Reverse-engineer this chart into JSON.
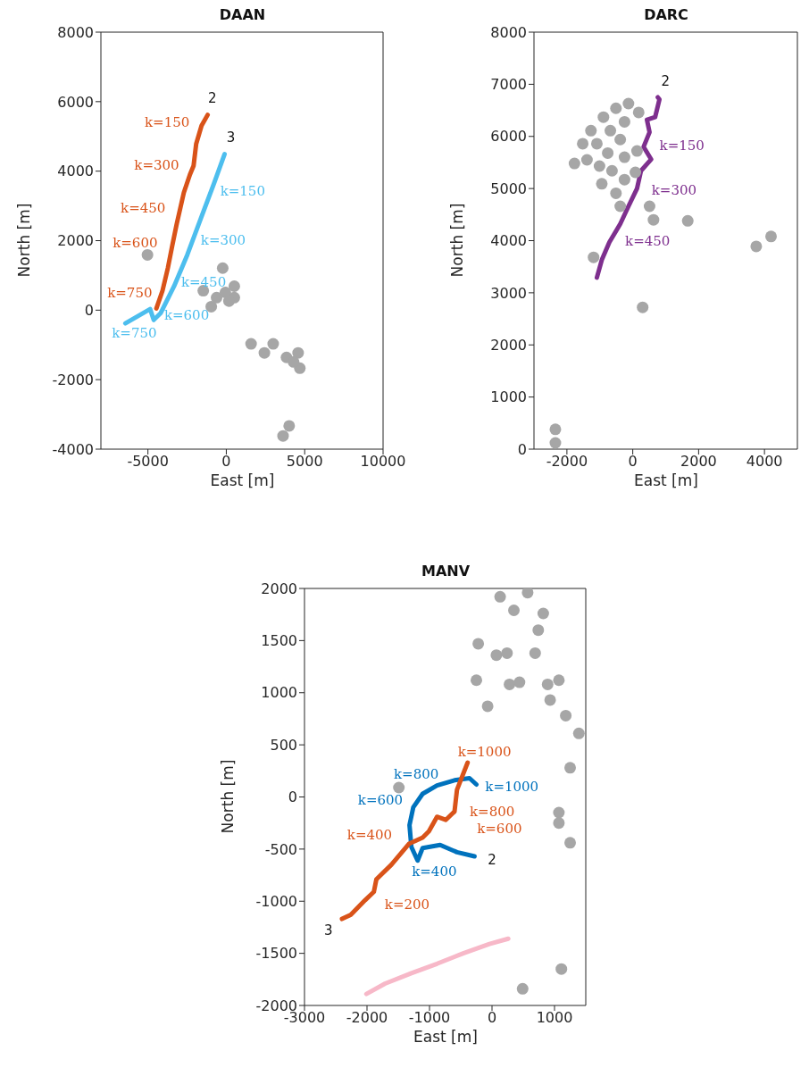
{
  "chart_data": [
    {
      "type": "line",
      "title": "DAAN",
      "xlabel": "East [m]",
      "ylabel": "North [m]",
      "xlim": [
        -8000,
        10000
      ],
      "ylim": [
        -4000,
        8000
      ],
      "xticks": [
        -5000,
        0,
        5000,
        10000
      ],
      "yticks": [
        -4000,
        -2000,
        0,
        2000,
        4000,
        6000,
        8000
      ],
      "series": [
        {
          "type": "scatter",
          "color": "#a6a6a6",
          "x": [
            -5030,
            -230,
            -1470,
            -620,
            -60,
            510,
            510,
            -960,
            170,
            1580,
            2430,
            2990,
            3840,
            4580,
            4690,
            4290,
            4010,
            3620
          ],
          "values": [
            1590,
            1210,
            560,
            360,
            510,
            690,
            360,
            100,
            260,
            -970,
            -1230,
            -970,
            -1360,
            -1230,
            -1670,
            -1490,
            -3330,
            -3620
          ]
        },
        {
          "name": "2",
          "color": "#d95319",
          "x": [
            -1190,
            -1580,
            -1920,
            -2090,
            -2320,
            -2710,
            -3160,
            -3450,
            -3730,
            -4070,
            -4460
          ],
          "values": [
            5620,
            5310,
            4790,
            4150,
            3900,
            3380,
            2490,
            1850,
            1210,
            560,
            50
          ]
        },
        {
          "name": "3",
          "color": "#4dbeee",
          "x": [
            -110,
            -790,
            -1640,
            -2490,
            -3330,
            -4180,
            -4630,
            -4860,
            -6440
          ],
          "values": [
            4490,
            3640,
            2620,
            1590,
            690,
            -80,
            -280,
            30,
            -380
          ]
        }
      ],
      "annotations": [
        "k=150",
        "k=300",
        "k=450",
        "k=600",
        "k=750",
        "k=150",
        "k=300",
        "k=450",
        "k=600",
        "k=750"
      ]
    },
    {
      "type": "line",
      "title": "DARC",
      "xlabel": "East [m]",
      "ylabel": "North [m]",
      "xlim": [
        -3000,
        5000
      ],
      "ylim": [
        0,
        8000
      ],
      "xticks": [
        -2000,
        0,
        2000,
        4000
      ],
      "yticks": [
        0,
        1000,
        2000,
        3000,
        4000,
        5000,
        6000,
        7000,
        8000
      ],
      "series": [
        {
          "type": "scatter",
          "color": "#a6a6a6",
          "x": [
            -1770,
            -1520,
            -1270,
            -890,
            -510,
            -130,
            180,
            -250,
            -680,
            -1090,
            -1390,
            -1010,
            -760,
            -380,
            -940,
            -630,
            -250,
            130,
            -510,
            -250,
            80,
            -380,
            510,
            630,
            1670,
            3750,
            4200,
            300,
            -2350,
            -2350,
            -1190
          ],
          "values": [
            5480,
            5860,
            6110,
            6370,
            6540,
            6630,
            6460,
            6280,
            6110,
            5860,
            5550,
            5430,
            5680,
            5940,
            5090,
            5340,
            5600,
            5720,
            4910,
            5170,
            5310,
            4660,
            4660,
            4400,
            4380,
            3890,
            4080,
            2720,
            120,
            380,
            3680
          ]
        },
        {
          "name": "2",
          "color": "#7e2f8e",
          "x": [
            760,
            810,
            680,
            430,
            510,
            330,
            560,
            250,
            130,
            -130,
            -380,
            -710,
            -940,
            -1090
          ],
          "values": [
            6750,
            6710,
            6370,
            6320,
            6080,
            5800,
            5560,
            5340,
            5000,
            4660,
            4320,
            3970,
            3630,
            3290
          ]
        }
      ],
      "annotations": [
        "k=150",
        "k=300",
        "k=450"
      ]
    },
    {
      "type": "line",
      "title": "MANV",
      "xlabel": "East [m]",
      "ylabel": "North [m]",
      "xlim": [
        -3000,
        1500
      ],
      "ylim": [
        -2000,
        2000
      ],
      "xticks": [
        -3000,
        -2000,
        -1000,
        0,
        1000
      ],
      "yticks": [
        -2000,
        -1500,
        -1000,
        -500,
        0,
        500,
        1000,
        1500,
        2000
      ],
      "series": [
        {
          "type": "scatter",
          "color": "#a6a6a6",
          "x": [
            130,
            570,
            350,
            820,
            740,
            -220,
            70,
            240,
            690,
            -250,
            280,
            440,
            890,
            930,
            -70,
            1180,
            1070,
            1250,
            1390,
            1070,
            1070,
            1250,
            1110,
            490,
            -1490
          ],
          "values": [
            1920,
            1960,
            1790,
            1760,
            1600,
            1470,
            1360,
            1380,
            1380,
            1120,
            1080,
            1100,
            1080,
            930,
            870,
            780,
            1120,
            280,
            610,
            -150,
            -250,
            -440,
            -1650,
            -1840,
            90
          ]
        },
        {
          "color": "#f7b8c8",
          "x": [
            -2010,
            -1710,
            -1290,
            -880,
            -460,
            -40,
            260
          ],
          "values": [
            -1890,
            -1790,
            -1690,
            -1600,
            -1500,
            -1410,
            -1360
          ]
        },
        {
          "name": "2",
          "color": "#0072bd",
          "x": [
            -280,
            -560,
            -830,
            -1110,
            -1190,
            -1290,
            -1320,
            -1260,
            -1110,
            -880,
            -600,
            -360,
            -250
          ],
          "values": [
            -570,
            -530,
            -460,
            -490,
            -610,
            -480,
            -270,
            -100,
            30,
            110,
            160,
            180,
            120
          ]
        },
        {
          "name": "3",
          "color": "#d95319",
          "x": [
            -2400,
            -2260,
            -2030,
            -1890,
            -1850,
            -1610,
            -1330,
            -1110,
            -1010,
            -880,
            -740,
            -600,
            -560,
            -390
          ],
          "values": [
            -1170,
            -1130,
            -990,
            -910,
            -790,
            -650,
            -450,
            -390,
            -330,
            -190,
            -220,
            -140,
            70,
            330
          ]
        }
      ],
      "annotations": [
        "k=1000",
        "k=800",
        "k=1000",
        "k=600",
        "k=800",
        "k=600",
        "k=400",
        "k=400",
        "k=200"
      ]
    }
  ]
}
